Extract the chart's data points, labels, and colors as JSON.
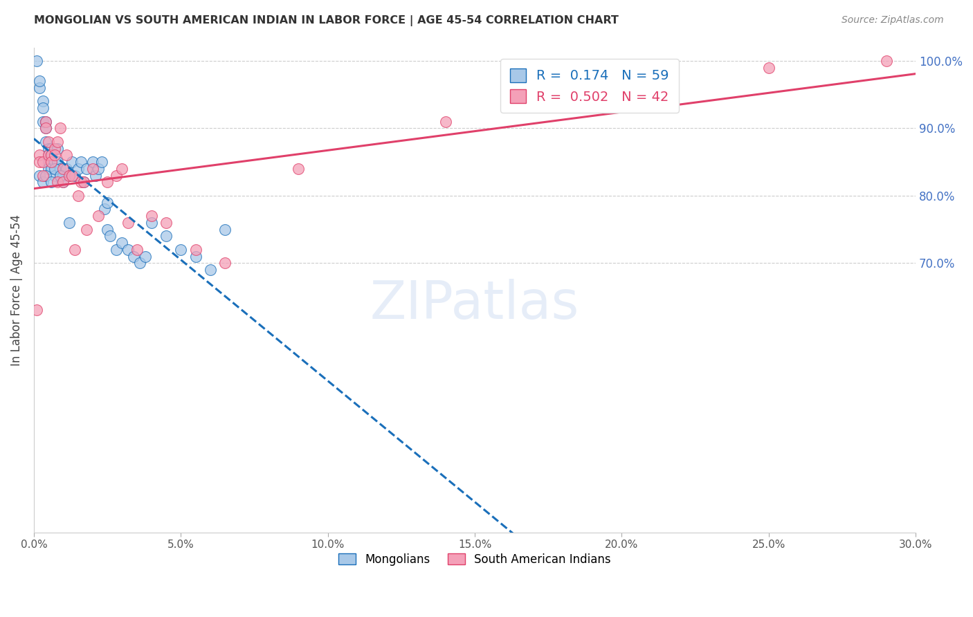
{
  "title": "MONGOLIAN VS SOUTH AMERICAN INDIAN IN LABOR FORCE | AGE 45-54 CORRELATION CHART",
  "source": "Source: ZipAtlas.com",
  "ylabel": "In Labor Force | Age 45-54",
  "r_mongolian": 0.174,
  "n_mongolian": 59,
  "r_south_american": 0.502,
  "n_south_american": 42,
  "mongolian_color": "#a8c8e8",
  "south_american_color": "#f4a0b8",
  "mongolian_line_color": "#1a6fba",
  "south_american_line_color": "#e0406a",
  "xmin": 0.0,
  "xmax": 0.3,
  "ymin": 0.3,
  "ymax": 1.02,
  "ytick_show": [
    0.7,
    0.8,
    0.9,
    1.0
  ],
  "xticks": [
    0.0,
    0.05,
    0.1,
    0.15,
    0.2,
    0.25,
    0.3
  ],
  "mongolian_x": [
    0.001,
    0.002,
    0.002,
    0.003,
    0.003,
    0.003,
    0.004,
    0.004,
    0.004,
    0.005,
    0.005,
    0.005,
    0.005,
    0.006,
    0.006,
    0.006,
    0.007,
    0.007,
    0.008,
    0.008,
    0.009,
    0.009,
    0.01,
    0.01,
    0.011,
    0.012,
    0.013,
    0.014,
    0.015,
    0.016,
    0.017,
    0.018,
    0.02,
    0.021,
    0.022,
    0.023,
    0.024,
    0.025,
    0.025,
    0.026,
    0.028,
    0.03,
    0.032,
    0.034,
    0.036,
    0.038,
    0.04,
    0.045,
    0.05,
    0.055,
    0.06,
    0.065,
    0.002,
    0.003,
    0.004,
    0.006,
    0.007,
    0.009,
    0.012
  ],
  "mongolian_y": [
    1.0,
    0.96,
    0.97,
    0.94,
    0.91,
    0.93,
    0.88,
    0.9,
    0.91,
    0.87,
    0.86,
    0.85,
    0.84,
    0.87,
    0.86,
    0.84,
    0.85,
    0.83,
    0.87,
    0.85,
    0.83,
    0.84,
    0.83,
    0.82,
    0.84,
    0.83,
    0.85,
    0.83,
    0.84,
    0.85,
    0.82,
    0.84,
    0.85,
    0.83,
    0.84,
    0.85,
    0.78,
    0.79,
    0.75,
    0.74,
    0.72,
    0.73,
    0.72,
    0.71,
    0.7,
    0.71,
    0.76,
    0.74,
    0.72,
    0.71,
    0.69,
    0.75,
    0.83,
    0.82,
    0.83,
    0.82,
    0.84,
    0.83,
    0.76
  ],
  "south_american_x": [
    0.001,
    0.002,
    0.002,
    0.003,
    0.003,
    0.004,
    0.004,
    0.005,
    0.005,
    0.006,
    0.006,
    0.007,
    0.007,
    0.008,
    0.008,
    0.009,
    0.01,
    0.01,
    0.011,
    0.012,
    0.013,
    0.014,
    0.015,
    0.016,
    0.017,
    0.018,
    0.02,
    0.022,
    0.025,
    0.028,
    0.03,
    0.032,
    0.035,
    0.04,
    0.045,
    0.055,
    0.065,
    0.09,
    0.14,
    0.2,
    0.25,
    0.29
  ],
  "south_american_y": [
    0.63,
    0.86,
    0.85,
    0.85,
    0.83,
    0.91,
    0.9,
    0.88,
    0.86,
    0.86,
    0.85,
    0.87,
    0.86,
    0.88,
    0.82,
    0.9,
    0.84,
    0.82,
    0.86,
    0.83,
    0.83,
    0.72,
    0.8,
    0.82,
    0.82,
    0.75,
    0.84,
    0.77,
    0.82,
    0.83,
    0.84,
    0.76,
    0.72,
    0.77,
    0.76,
    0.72,
    0.7,
    0.84,
    0.91,
    0.97,
    0.99,
    1.0
  ]
}
